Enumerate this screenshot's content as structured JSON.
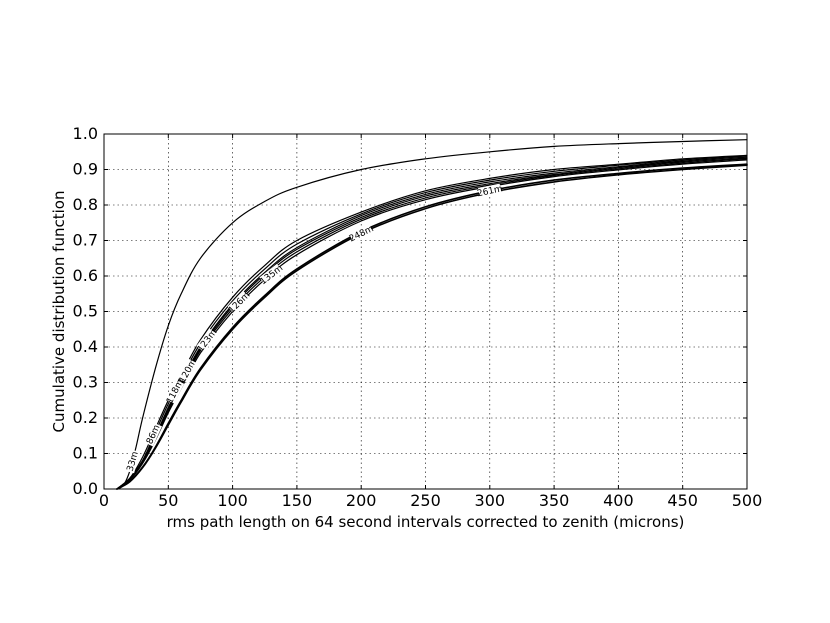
{
  "chart_data": {
    "type": "line",
    "title": "",
    "xlabel": "rms path length on 64 second intervals corrected to zenith (microns)",
    "ylabel": "Cumulative distribution function",
    "xlim": [
      0,
      500
    ],
    "ylim": [
      0.0,
      1.0
    ],
    "grid": true,
    "legend": "none",
    "x_ticks": [
      "0",
      "50",
      "100",
      "150",
      "200",
      "250",
      "300",
      "350",
      "400",
      "450",
      "500"
    ],
    "y_ticks": [
      "0.0",
      "0.1",
      "0.2",
      "0.3",
      "0.4",
      "0.5",
      "0.6",
      "0.7",
      "0.8",
      "0.9",
      "1.0"
    ],
    "line_color": "#000000",
    "series": [
      {
        "name": "33m",
        "values": [
          [
            10,
            0
          ],
          [
            15,
            0.01
          ],
          [
            20,
            0.05
          ],
          [
            25,
            0.12
          ],
          [
            30,
            0.2
          ],
          [
            40,
            0.34
          ],
          [
            50,
            0.46
          ],
          [
            60,
            0.55
          ],
          [
            75,
            0.65
          ],
          [
            100,
            0.75
          ],
          [
            125,
            0.81
          ],
          [
            150,
            0.85
          ],
          [
            200,
            0.9
          ],
          [
            250,
            0.93
          ],
          [
            300,
            0.95
          ],
          [
            350,
            0.965
          ],
          [
            400,
            0.973
          ],
          [
            450,
            0.979
          ],
          [
            500,
            0.984
          ]
        ],
        "label_x": 22
      },
      {
        "name": "86m",
        "values": [
          [
            10,
            0
          ],
          [
            20,
            0.03
          ],
          [
            30,
            0.09
          ],
          [
            40,
            0.17
          ],
          [
            50,
            0.25
          ],
          [
            60,
            0.32
          ],
          [
            75,
            0.42
          ],
          [
            100,
            0.54
          ],
          [
            125,
            0.63
          ],
          [
            150,
            0.7
          ],
          [
            200,
            0.78
          ],
          [
            250,
            0.84
          ],
          [
            300,
            0.875
          ],
          [
            350,
            0.9
          ],
          [
            400,
            0.915
          ],
          [
            450,
            0.93
          ],
          [
            500,
            0.94
          ]
        ],
        "label_x": 38
      },
      {
        "name": "118m",
        "values": [
          [
            10,
            0
          ],
          [
            20,
            0.03
          ],
          [
            30,
            0.08
          ],
          [
            40,
            0.16
          ],
          [
            50,
            0.24
          ],
          [
            60,
            0.31
          ],
          [
            75,
            0.41
          ],
          [
            100,
            0.53
          ],
          [
            125,
            0.62
          ],
          [
            150,
            0.69
          ],
          [
            200,
            0.775
          ],
          [
            250,
            0.835
          ],
          [
            300,
            0.87
          ],
          [
            350,
            0.895
          ],
          [
            400,
            0.912
          ],
          [
            450,
            0.927
          ],
          [
            500,
            0.938
          ]
        ],
        "label_x": 55
      },
      {
        "name": "120m",
        "values": [
          [
            10,
            0
          ],
          [
            20,
            0.03
          ],
          [
            30,
            0.08
          ],
          [
            40,
            0.15
          ],
          [
            50,
            0.23
          ],
          [
            60,
            0.3
          ],
          [
            75,
            0.4
          ],
          [
            100,
            0.52
          ],
          [
            125,
            0.61
          ],
          [
            150,
            0.68
          ],
          [
            200,
            0.77
          ],
          [
            250,
            0.83
          ],
          [
            300,
            0.865
          ],
          [
            350,
            0.89
          ],
          [
            400,
            0.908
          ],
          [
            450,
            0.924
          ],
          [
            500,
            0.935
          ]
        ],
        "label_x": 65
      },
      {
        "name": "123m",
        "values": [
          [
            10,
            0
          ],
          [
            20,
            0.028
          ],
          [
            30,
            0.078
          ],
          [
            40,
            0.148
          ],
          [
            50,
            0.225
          ],
          [
            60,
            0.295
          ],
          [
            75,
            0.395
          ],
          [
            100,
            0.515
          ],
          [
            125,
            0.605
          ],
          [
            150,
            0.675
          ],
          [
            200,
            0.765
          ],
          [
            250,
            0.825
          ],
          [
            300,
            0.86
          ],
          [
            350,
            0.886
          ],
          [
            400,
            0.905
          ],
          [
            450,
            0.921
          ],
          [
            500,
            0.932
          ]
        ],
        "label_x": 80
      },
      {
        "name": "126m",
        "values": [
          [
            10,
            0
          ],
          [
            20,
            0.026
          ],
          [
            30,
            0.075
          ],
          [
            40,
            0.143
          ],
          [
            50,
            0.22
          ],
          [
            60,
            0.29
          ],
          [
            75,
            0.39
          ],
          [
            100,
            0.508
          ],
          [
            125,
            0.598
          ],
          [
            150,
            0.668
          ],
          [
            200,
            0.76
          ],
          [
            250,
            0.82
          ],
          [
            300,
            0.856
          ],
          [
            350,
            0.883
          ],
          [
            400,
            0.902
          ],
          [
            450,
            0.918
          ],
          [
            500,
            0.93
          ]
        ],
        "label_x": 105
      },
      {
        "name": "135m",
        "values": [
          [
            10,
            0
          ],
          [
            20,
            0.025
          ],
          [
            30,
            0.072
          ],
          [
            40,
            0.138
          ],
          [
            50,
            0.215
          ],
          [
            60,
            0.283
          ],
          [
            75,
            0.383
          ],
          [
            100,
            0.5
          ],
          [
            125,
            0.59
          ],
          [
            150,
            0.66
          ],
          [
            200,
            0.755
          ],
          [
            250,
            0.815
          ],
          [
            300,
            0.852
          ],
          [
            350,
            0.88
          ],
          [
            400,
            0.899
          ],
          [
            450,
            0.915
          ],
          [
            500,
            0.927
          ]
        ],
        "label_x": 130
      },
      {
        "name": "248m",
        "values": [
          [
            10,
            0
          ],
          [
            20,
            0.02
          ],
          [
            30,
            0.06
          ],
          [
            40,
            0.115
          ],
          [
            50,
            0.18
          ],
          [
            60,
            0.245
          ],
          [
            75,
            0.335
          ],
          [
            100,
            0.45
          ],
          [
            125,
            0.54
          ],
          [
            150,
            0.615
          ],
          [
            200,
            0.72
          ],
          [
            250,
            0.79
          ],
          [
            300,
            0.835
          ],
          [
            350,
            0.865
          ],
          [
            400,
            0.885
          ],
          [
            450,
            0.9
          ],
          [
            500,
            0.912
          ]
        ],
        "label_x": 200
      },
      {
        "name": "261m",
        "values": [
          [
            10,
            0
          ],
          [
            20,
            0.021
          ],
          [
            30,
            0.062
          ],
          [
            40,
            0.118
          ],
          [
            50,
            0.185
          ],
          [
            60,
            0.25
          ],
          [
            75,
            0.34
          ],
          [
            100,
            0.455
          ],
          [
            125,
            0.545
          ],
          [
            150,
            0.62
          ],
          [
            200,
            0.725
          ],
          [
            250,
            0.795
          ],
          [
            300,
            0.84
          ],
          [
            350,
            0.87
          ],
          [
            400,
            0.889
          ],
          [
            450,
            0.904
          ],
          [
            500,
            0.915
          ]
        ],
        "label_x": 300
      }
    ]
  }
}
